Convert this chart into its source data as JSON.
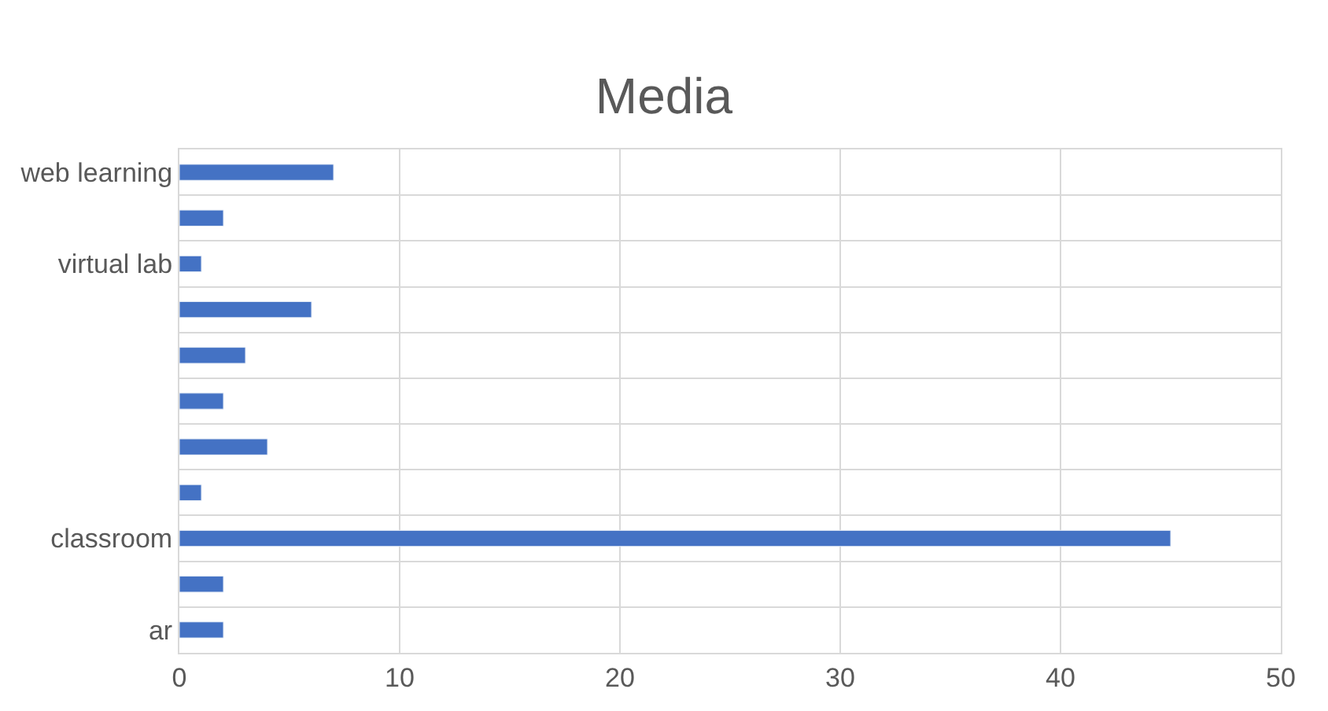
{
  "chart_data": {
    "type": "bar",
    "orientation": "horizontal",
    "title": "Media",
    "categories": [
      "web learning",
      null,
      "virtual lab",
      null,
      null,
      null,
      null,
      null,
      "classroom",
      null,
      "ar"
    ],
    "values": [
      7,
      2,
      1,
      6,
      3,
      2,
      4,
      1,
      45,
      2,
      2
    ],
    "color": "#4472c4",
    "xlim": [
      0,
      50
    ],
    "xticks": [
      0,
      10,
      20,
      30,
      40,
      50
    ],
    "grid": true
  }
}
